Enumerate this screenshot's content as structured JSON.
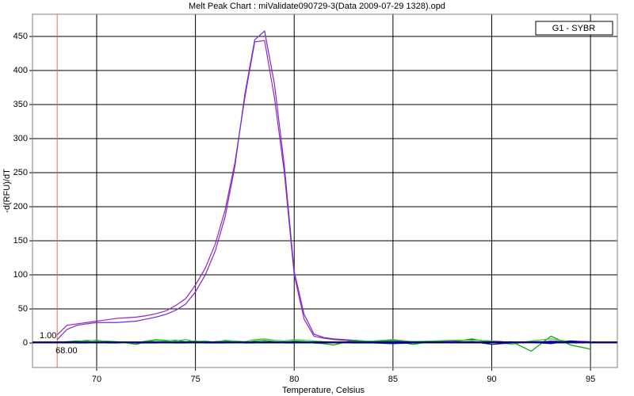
{
  "chart_data": {
    "type": "line",
    "title": "Melt Peak Chart : miValidate090729-3(Data 2009-07-29 1328).opd",
    "x_label": "Temperature, Celsius",
    "y_label": "-d(RFU)/dT",
    "legend_text": "G1 - SYBR",
    "xlim": [
      66.75,
      96.36
    ],
    "ylim": [
      -36,
      482.6
    ],
    "xticks": [
      70,
      75,
      80,
      85,
      90,
      95
    ],
    "yticks": [
      0,
      50,
      100,
      150,
      200,
      250,
      300,
      350,
      400,
      450
    ],
    "grid": true,
    "threshold": {
      "value": 1,
      "label": "1.00",
      "color": "#000080"
    },
    "marker_x": {
      "value": 68,
      "label": "68.00",
      "color": "#e07040"
    },
    "x": [
      68,
      68.5,
      69,
      69.5,
      70,
      70.5,
      71,
      71.5,
      72,
      72.5,
      73,
      73.5,
      74,
      74.5,
      75,
      75.5,
      76,
      76.5,
      77,
      77.5,
      78,
      78.5,
      79,
      79.5,
      80,
      80.5,
      81,
      81.5,
      82,
      83,
      84,
      85,
      86,
      87,
      88,
      89,
      90,
      91,
      92,
      93,
      94,
      95
    ],
    "series": [
      {
        "color": "#a020c0",
        "values": [
          12,
          26,
          28,
          30,
          32,
          34,
          36,
          37,
          38,
          40,
          43,
          47,
          55,
          65,
          85,
          110,
          145,
          195,
          265,
          360,
          442,
          444,
          360,
          250,
          100,
          35,
          10,
          7,
          5,
          3,
          2,
          3,
          2,
          2,
          3,
          4,
          3,
          1,
          2,
          2,
          3,
          2
        ]
      },
      {
        "color": "#7030c8",
        "values": [
          5,
          20,
          26,
          28,
          30,
          30,
          30,
          31,
          32,
          35,
          38,
          42,
          48,
          57,
          75,
          100,
          135,
          185,
          260,
          365,
          445,
          458,
          380,
          260,
          105,
          42,
          13,
          8,
          6,
          4,
          2,
          4,
          1,
          2,
          3,
          5,
          2,
          1,
          0,
          3,
          2,
          1
        ]
      },
      {
        "color": "#00a000",
        "values": [
          1,
          2,
          3,
          3,
          4,
          2,
          1,
          0,
          -2,
          2,
          4,
          3,
          4,
          2,
          3,
          1,
          2,
          3,
          1,
          0,
          3,
          4,
          2,
          1,
          3,
          2,
          0,
          -1,
          -3,
          4,
          2,
          3,
          -2,
          2,
          1,
          6,
          0,
          2,
          -12,
          10,
          -3,
          -9
        ]
      },
      {
        "color": "#33cc33",
        "values": [
          2,
          1,
          2,
          4,
          3,
          3,
          2,
          1,
          0,
          3,
          5,
          4,
          3,
          5,
          2,
          3,
          1,
          4,
          3,
          2,
          5,
          6,
          4,
          3,
          5,
          4,
          3,
          2,
          1,
          2,
          3,
          5,
          2,
          3,
          4,
          4,
          3,
          -2,
          3,
          6,
          2,
          0
        ]
      },
      {
        "color": "#0000aa",
        "values": [
          0,
          1,
          0,
          0,
          1,
          0,
          0,
          1,
          0,
          0,
          0,
          1,
          0,
          0,
          1,
          0,
          0,
          0,
          1,
          0,
          0,
          2,
          1,
          0,
          0,
          1,
          0,
          0,
          1,
          0,
          0,
          -1,
          0,
          1,
          0,
          2,
          -2,
          0,
          1,
          -1,
          3,
          0
        ]
      }
    ]
  }
}
